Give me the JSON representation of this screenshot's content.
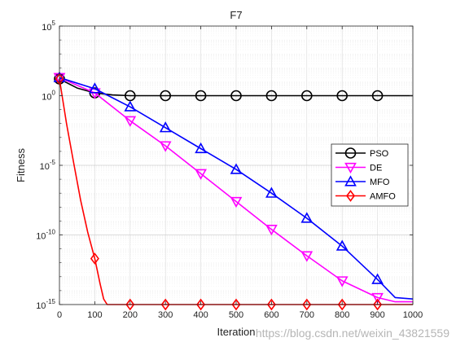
{
  "watermark": "https://blog.csdn.net/weixin_43821559",
  "chart_data": {
    "type": "line",
    "title": "F7",
    "xlabel": "Iteration",
    "ylabel": "Fitness",
    "xlim": [
      0,
      1000
    ],
    "ylim": [
      1e-15,
      100000.0
    ],
    "yscale": "log",
    "xticks": [
      0,
      100,
      200,
      300,
      400,
      500,
      600,
      700,
      800,
      900,
      1000
    ],
    "yticks": [
      {
        "value": 1e-15,
        "base": "10",
        "exp": "-15"
      },
      {
        "value": 1e-10,
        "base": "10",
        "exp": "-10"
      },
      {
        "value": 1e-05,
        "base": "10",
        "exp": "-5"
      },
      {
        "value": 1,
        "base": "10",
        "exp": "0"
      },
      {
        "value": 100000.0,
        "base": "10",
        "exp": "5"
      }
    ],
    "grid": true,
    "legend_position": "right",
    "series": [
      {
        "name": "PSO",
        "color": "#000000",
        "marker": "circle",
        "x": [
          0,
          50,
          100,
          150,
          200,
          300,
          400,
          500,
          600,
          700,
          800,
          900,
          1000
        ],
        "log10y": [
          1.2,
          0.55,
          0.2,
          0.05,
          0.0,
          0.0,
          0.0,
          0.0,
          0.0,
          0.0,
          0.0,
          0.0,
          0.0
        ],
        "markers_x": [
          0,
          100,
          200,
          300,
          400,
          500,
          600,
          700,
          800,
          900
        ]
      },
      {
        "name": "DE",
        "color": "#ff00ff",
        "marker": "triangle-down",
        "x": [
          0,
          100,
          200,
          300,
          400,
          500,
          600,
          700,
          800,
          900,
          950,
          1000
        ],
        "log10y": [
          1.3,
          0.2,
          -1.8,
          -3.6,
          -5.6,
          -7.6,
          -9.6,
          -11.5,
          -13.3,
          -14.5,
          -14.8,
          -14.8
        ],
        "markers_x": [
          0,
          100,
          200,
          300,
          400,
          500,
          600,
          700,
          800,
          900
        ]
      },
      {
        "name": "MFO",
        "color": "#0000ff",
        "marker": "triangle-up",
        "x": [
          0,
          100,
          200,
          300,
          400,
          500,
          600,
          700,
          800,
          900,
          950,
          1000
        ],
        "log10y": [
          1.3,
          0.5,
          -0.8,
          -2.3,
          -3.8,
          -5.3,
          -7.0,
          -8.8,
          -10.8,
          -13.2,
          -14.5,
          -14.6
        ],
        "markers_x": [
          0,
          100,
          200,
          300,
          400,
          500,
          600,
          700,
          800,
          900
        ]
      },
      {
        "name": "AMFO",
        "color": "#ff0000",
        "marker": "diamond",
        "x": [
          0,
          20,
          40,
          60,
          80,
          100,
          115,
          125,
          135,
          150,
          1000
        ],
        "log10y": [
          1.2,
          -2.0,
          -4.8,
          -7.5,
          -9.8,
          -11.7,
          -13.5,
          -14.6,
          -15.0,
          -15.0,
          -15.0
        ],
        "markers_x": [
          0,
          100,
          200,
          300,
          400,
          500,
          600,
          700,
          800,
          900
        ],
        "markers_log10y": [
          1.2,
          -11.7,
          -15,
          -15,
          -15,
          -15,
          -15,
          -15,
          -15,
          -15
        ]
      }
    ]
  }
}
